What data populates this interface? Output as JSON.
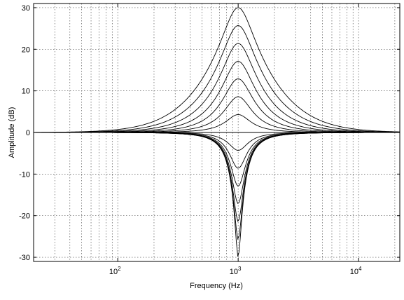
{
  "chart_data": {
    "type": "line",
    "title": "",
    "xlabel": "Frequency (Hz)",
    "ylabel": "Amplitude (dB)",
    "x_scale": "log",
    "xlim": [
      20,
      22000
    ],
    "ylim": [
      -31,
      31
    ],
    "grid": true,
    "x_ticks": [
      {
        "value": 100,
        "label": "10",
        "sup": "2"
      },
      {
        "value": 1000,
        "label": "10",
        "sup": "3"
      },
      {
        "value": 10000,
        "label": "10",
        "sup": "4"
      }
    ],
    "y_ticks": [
      {
        "value": -30,
        "label": "-30"
      },
      {
        "value": -20,
        "label": "-20"
      },
      {
        "value": -10,
        "label": "-10"
      },
      {
        "value": 0,
        "label": "0"
      },
      {
        "value": 10,
        "label": "10"
      },
      {
        "value": 20,
        "label": "20"
      },
      {
        "value": 30,
        "label": "30"
      }
    ],
    "center_frequency": 1000,
    "series": [
      {
        "peak_gain_db": 30
      },
      {
        "peak_gain_db": 25.7
      },
      {
        "peak_gain_db": 21.4
      },
      {
        "peak_gain_db": 17.1
      },
      {
        "peak_gain_db": 12.9
      },
      {
        "peak_gain_db": 8.6
      },
      {
        "peak_gain_db": 4.3
      },
      {
        "peak_gain_db": 0
      },
      {
        "peak_gain_db": -4.3
      },
      {
        "peak_gain_db": -8.6
      },
      {
        "peak_gain_db": -12.9
      },
      {
        "peak_gain_db": -17.1
      },
      {
        "peak_gain_db": -21.4
      },
      {
        "peak_gain_db": -25.7
      },
      {
        "peak_gain_db": -30
      }
    ]
  }
}
